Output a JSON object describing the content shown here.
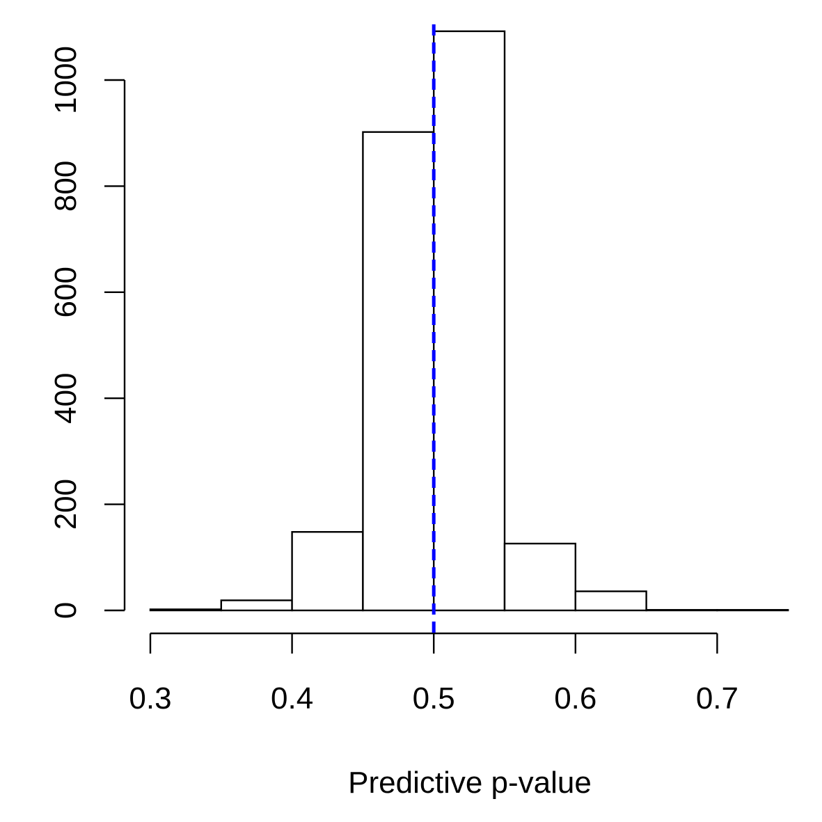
{
  "chart_data": {
    "type": "bar",
    "title": "",
    "xlabel": "Predictive p-value",
    "ylabel": "",
    "bins": [
      {
        "start": 0.3,
        "end": 0.35,
        "count": 2
      },
      {
        "start": 0.35,
        "end": 0.4,
        "count": 19
      },
      {
        "start": 0.4,
        "end": 0.45,
        "count": 148
      },
      {
        "start": 0.45,
        "end": 0.5,
        "count": 902
      },
      {
        "start": 0.5,
        "end": 0.55,
        "count": 1092
      },
      {
        "start": 0.55,
        "end": 0.6,
        "count": 126
      },
      {
        "start": 0.6,
        "end": 0.65,
        "count": 36
      },
      {
        "start": 0.65,
        "end": 0.7,
        "count": 1
      },
      {
        "start": 0.7,
        "end": 0.75,
        "count": 1
      }
    ],
    "x_ticks": [
      "0.3",
      "0.4",
      "0.5",
      "0.6",
      "0.7"
    ],
    "x_tick_values": [
      0.3,
      0.4,
      0.5,
      0.6,
      0.7
    ],
    "y_ticks": [
      "0",
      "200",
      "400",
      "600",
      "800",
      "1000"
    ],
    "y_tick_values": [
      0,
      200,
      400,
      600,
      800,
      1000
    ],
    "xlim": [
      0.3,
      0.75
    ],
    "ylim": [
      0,
      1092
    ],
    "grid": false,
    "legend": "none",
    "reference_line": {
      "x": 0.5,
      "color": "#0000ff",
      "style": "dashed"
    },
    "bar_fill": "#ffffff",
    "bar_stroke": "#000000"
  }
}
